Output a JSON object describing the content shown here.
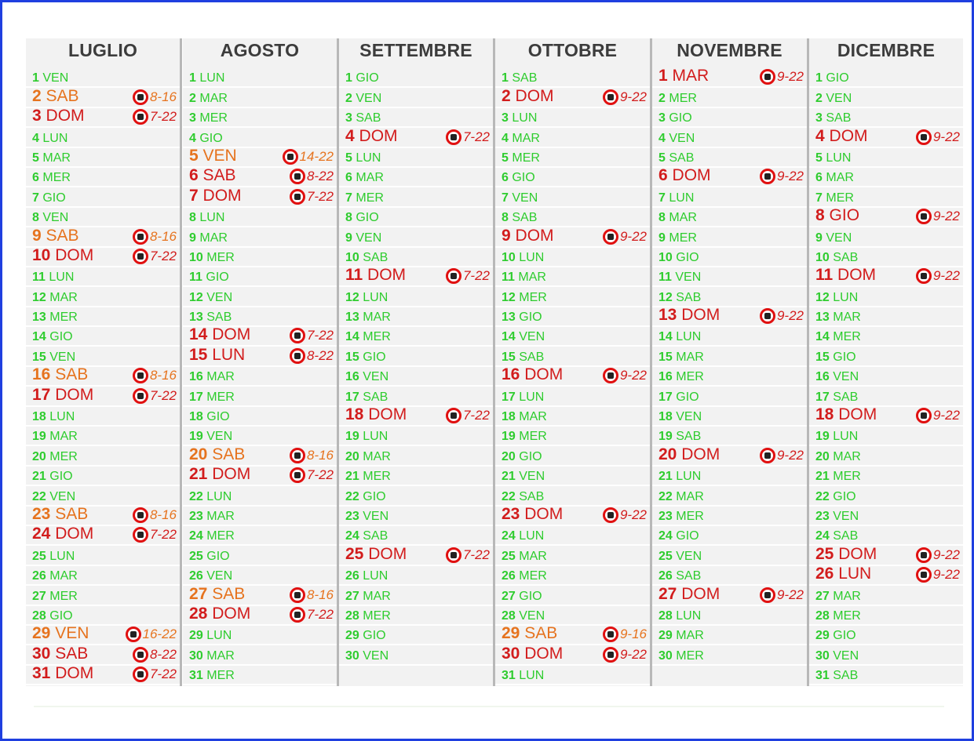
{
  "months": [
    {
      "name": "LUGLIO",
      "days": [
        {
          "n": "1",
          "d": "VEN",
          "t": "g"
        },
        {
          "n": "2",
          "d": "SAB",
          "t": "o",
          "h": "8-16"
        },
        {
          "n": "3",
          "d": "DOM",
          "t": "r",
          "h": "7-22"
        },
        {
          "n": "4",
          "d": "LUN",
          "t": "g"
        },
        {
          "n": "5",
          "d": "MAR",
          "t": "g"
        },
        {
          "n": "6",
          "d": "MER",
          "t": "g"
        },
        {
          "n": "7",
          "d": "GIO",
          "t": "g"
        },
        {
          "n": "8",
          "d": "VEN",
          "t": "g"
        },
        {
          "n": "9",
          "d": "SAB",
          "t": "o",
          "h": "8-16"
        },
        {
          "n": "10",
          "d": "DOM",
          "t": "r",
          "h": "7-22"
        },
        {
          "n": "11",
          "d": "LUN",
          "t": "g"
        },
        {
          "n": "12",
          "d": "MAR",
          "t": "g"
        },
        {
          "n": "13",
          "d": "MER",
          "t": "g"
        },
        {
          "n": "14",
          "d": "GIO",
          "t": "g"
        },
        {
          "n": "15",
          "d": "VEN",
          "t": "g"
        },
        {
          "n": "16",
          "d": "SAB",
          "t": "o",
          "h": "8-16"
        },
        {
          "n": "17",
          "d": "DOM",
          "t": "r",
          "h": "7-22"
        },
        {
          "n": "18",
          "d": "LUN",
          "t": "g"
        },
        {
          "n": "19",
          "d": "MAR",
          "t": "g"
        },
        {
          "n": "20",
          "d": "MER",
          "t": "g"
        },
        {
          "n": "21",
          "d": "GIO",
          "t": "g"
        },
        {
          "n": "22",
          "d": "VEN",
          "t": "g"
        },
        {
          "n": "23",
          "d": "SAB",
          "t": "o",
          "h": "8-16"
        },
        {
          "n": "24",
          "d": "DOM",
          "t": "r",
          "h": "7-22"
        },
        {
          "n": "25",
          "d": "LUN",
          "t": "g"
        },
        {
          "n": "26",
          "d": "MAR",
          "t": "g"
        },
        {
          "n": "27",
          "d": "MER",
          "t": "g"
        },
        {
          "n": "28",
          "d": "GIO",
          "t": "g"
        },
        {
          "n": "29",
          "d": "VEN",
          "t": "o",
          "h": "16-22"
        },
        {
          "n": "30",
          "d": "SAB",
          "t": "r",
          "h": "8-22"
        },
        {
          "n": "31",
          "d": "DOM",
          "t": "r",
          "h": "7-22"
        }
      ]
    },
    {
      "name": "AGOSTO",
      "days": [
        {
          "n": "1",
          "d": "LUN",
          "t": "g"
        },
        {
          "n": "2",
          "d": "MAR",
          "t": "g"
        },
        {
          "n": "3",
          "d": "MER",
          "t": "g"
        },
        {
          "n": "4",
          "d": "GIO",
          "t": "g"
        },
        {
          "n": "5",
          "d": "VEN",
          "t": "o",
          "h": "14-22"
        },
        {
          "n": "6",
          "d": "SAB",
          "t": "r",
          "h": "8-22"
        },
        {
          "n": "7",
          "d": "DOM",
          "t": "r",
          "h": "7-22"
        },
        {
          "n": "8",
          "d": "LUN",
          "t": "g"
        },
        {
          "n": "9",
          "d": "MAR",
          "t": "g"
        },
        {
          "n": "10",
          "d": "MER",
          "t": "g"
        },
        {
          "n": "11",
          "d": "GIO",
          "t": "g"
        },
        {
          "n": "12",
          "d": "VEN",
          "t": "g"
        },
        {
          "n": "13",
          "d": "SAB",
          "t": "g"
        },
        {
          "n": "14",
          "d": "DOM",
          "t": "r",
          "h": "7-22"
        },
        {
          "n": "15",
          "d": "LUN",
          "t": "r",
          "h": "8-22"
        },
        {
          "n": "16",
          "d": "MAR",
          "t": "g"
        },
        {
          "n": "17",
          "d": "MER",
          "t": "g"
        },
        {
          "n": "18",
          "d": "GIO",
          "t": "g"
        },
        {
          "n": "19",
          "d": "VEN",
          "t": "g"
        },
        {
          "n": "20",
          "d": "SAB",
          "t": "o",
          "h": "8-16"
        },
        {
          "n": "21",
          "d": "DOM",
          "t": "r",
          "h": "7-22"
        },
        {
          "n": "22",
          "d": "LUN",
          "t": "g"
        },
        {
          "n": "23",
          "d": "MAR",
          "t": "g"
        },
        {
          "n": "24",
          "d": "MER",
          "t": "g"
        },
        {
          "n": "25",
          "d": "GIO",
          "t": "g"
        },
        {
          "n": "26",
          "d": "VEN",
          "t": "g"
        },
        {
          "n": "27",
          "d": "SAB",
          "t": "o",
          "h": "8-16"
        },
        {
          "n": "28",
          "d": "DOM",
          "t": "r",
          "h": "7-22"
        },
        {
          "n": "29",
          "d": "LUN",
          "t": "g"
        },
        {
          "n": "30",
          "d": "MAR",
          "t": "g"
        },
        {
          "n": "31",
          "d": "MER",
          "t": "g"
        }
      ]
    },
    {
      "name": "SETTEMBRE",
      "days": [
        {
          "n": "1",
          "d": "GIO",
          "t": "g"
        },
        {
          "n": "2",
          "d": "VEN",
          "t": "g"
        },
        {
          "n": "3",
          "d": "SAB",
          "t": "g"
        },
        {
          "n": "4",
          "d": "DOM",
          "t": "r",
          "h": "7-22"
        },
        {
          "n": "5",
          "d": "LUN",
          "t": "g"
        },
        {
          "n": "6",
          "d": "MAR",
          "t": "g"
        },
        {
          "n": "7",
          "d": "MER",
          "t": "g"
        },
        {
          "n": "8",
          "d": "GIO",
          "t": "g"
        },
        {
          "n": "9",
          "d": "VEN",
          "t": "g"
        },
        {
          "n": "10",
          "d": "SAB",
          "t": "g"
        },
        {
          "n": "11",
          "d": "DOM",
          "t": "r",
          "h": "7-22"
        },
        {
          "n": "12",
          "d": "LUN",
          "t": "g"
        },
        {
          "n": "13",
          "d": "MAR",
          "t": "g"
        },
        {
          "n": "14",
          "d": "MER",
          "t": "g"
        },
        {
          "n": "15",
          "d": "GIO",
          "t": "g"
        },
        {
          "n": "16",
          "d": "VEN",
          "t": "g"
        },
        {
          "n": "17",
          "d": "SAB",
          "t": "g"
        },
        {
          "n": "18",
          "d": "DOM",
          "t": "r",
          "h": "7-22"
        },
        {
          "n": "19",
          "d": "LUN",
          "t": "g"
        },
        {
          "n": "20",
          "d": "MAR",
          "t": "g"
        },
        {
          "n": "21",
          "d": "MER",
          "t": "g"
        },
        {
          "n": "22",
          "d": "GIO",
          "t": "g"
        },
        {
          "n": "23",
          "d": "VEN",
          "t": "g"
        },
        {
          "n": "24",
          "d": "SAB",
          "t": "g"
        },
        {
          "n": "25",
          "d": "DOM",
          "t": "r",
          "h": "7-22"
        },
        {
          "n": "26",
          "d": "LUN",
          "t": "g"
        },
        {
          "n": "27",
          "d": "MAR",
          "t": "g"
        },
        {
          "n": "28",
          "d": "MER",
          "t": "g"
        },
        {
          "n": "29",
          "d": "GIO",
          "t": "g"
        },
        {
          "n": "30",
          "d": "VEN",
          "t": "g"
        }
      ]
    },
    {
      "name": "OTTOBRE",
      "days": [
        {
          "n": "1",
          "d": "SAB",
          "t": "g"
        },
        {
          "n": "2",
          "d": "DOM",
          "t": "r",
          "h": "9-22"
        },
        {
          "n": "3",
          "d": "LUN",
          "t": "g"
        },
        {
          "n": "4",
          "d": "MAR",
          "t": "g"
        },
        {
          "n": "5",
          "d": "MER",
          "t": "g"
        },
        {
          "n": "6",
          "d": "GIO",
          "t": "g"
        },
        {
          "n": "7",
          "d": "VEN",
          "t": "g"
        },
        {
          "n": "8",
          "d": "SAB",
          "t": "g"
        },
        {
          "n": "9",
          "d": "DOM",
          "t": "r",
          "h": "9-22"
        },
        {
          "n": "10",
          "d": "LUN",
          "t": "g"
        },
        {
          "n": "11",
          "d": "MAR",
          "t": "g"
        },
        {
          "n": "12",
          "d": "MER",
          "t": "g"
        },
        {
          "n": "13",
          "d": "GIO",
          "t": "g"
        },
        {
          "n": "14",
          "d": "VEN",
          "t": "g"
        },
        {
          "n": "15",
          "d": "SAB",
          "t": "g"
        },
        {
          "n": "16",
          "d": "DOM",
          "t": "r",
          "h": "9-22"
        },
        {
          "n": "17",
          "d": "LUN",
          "t": "g"
        },
        {
          "n": "18",
          "d": "MAR",
          "t": "g"
        },
        {
          "n": "19",
          "d": "MER",
          "t": "g"
        },
        {
          "n": "20",
          "d": "GIO",
          "t": "g"
        },
        {
          "n": "21",
          "d": "VEN",
          "t": "g"
        },
        {
          "n": "22",
          "d": "SAB",
          "t": "g"
        },
        {
          "n": "23",
          "d": "DOM",
          "t": "r",
          "h": "9-22"
        },
        {
          "n": "24",
          "d": "LUN",
          "t": "g"
        },
        {
          "n": "25",
          "d": "MAR",
          "t": "g"
        },
        {
          "n": "26",
          "d": "MER",
          "t": "g"
        },
        {
          "n": "27",
          "d": "GIO",
          "t": "g"
        },
        {
          "n": "28",
          "d": "VEN",
          "t": "g"
        },
        {
          "n": "29",
          "d": "SAB",
          "t": "o",
          "h": "9-16"
        },
        {
          "n": "30",
          "d": "DOM",
          "t": "r",
          "h": "9-22"
        },
        {
          "n": "31",
          "d": "LUN",
          "t": "g"
        }
      ]
    },
    {
      "name": "NOVEMBRE",
      "days": [
        {
          "n": "1",
          "d": "MAR",
          "t": "r",
          "h": "9-22"
        },
        {
          "n": "2",
          "d": "MER",
          "t": "g"
        },
        {
          "n": "3",
          "d": "GIO",
          "t": "g"
        },
        {
          "n": "4",
          "d": "VEN",
          "t": "g"
        },
        {
          "n": "5",
          "d": "SAB",
          "t": "g"
        },
        {
          "n": "6",
          "d": "DOM",
          "t": "r",
          "h": "9-22"
        },
        {
          "n": "7",
          "d": "LUN",
          "t": "g"
        },
        {
          "n": "8",
          "d": "MAR",
          "t": "g"
        },
        {
          "n": "9",
          "d": "MER",
          "t": "g"
        },
        {
          "n": "10",
          "d": "GIO",
          "t": "g"
        },
        {
          "n": "11",
          "d": "VEN",
          "t": "g"
        },
        {
          "n": "12",
          "d": "SAB",
          "t": "g"
        },
        {
          "n": "13",
          "d": "DOM",
          "t": "r",
          "h": "9-22"
        },
        {
          "n": "14",
          "d": "LUN",
          "t": "g"
        },
        {
          "n": "15",
          "d": "MAR",
          "t": "g"
        },
        {
          "n": "16",
          "d": "MER",
          "t": "g"
        },
        {
          "n": "17",
          "d": "GIO",
          "t": "g"
        },
        {
          "n": "18",
          "d": "VEN",
          "t": "g"
        },
        {
          "n": "19",
          "d": "SAB",
          "t": "g"
        },
        {
          "n": "20",
          "d": "DOM",
          "t": "r",
          "h": "9-22"
        },
        {
          "n": "21",
          "d": "LUN",
          "t": "g"
        },
        {
          "n": "22",
          "d": "MAR",
          "t": "g"
        },
        {
          "n": "23",
          "d": "MER",
          "t": "g"
        },
        {
          "n": "24",
          "d": "GIO",
          "t": "g"
        },
        {
          "n": "25",
          "d": "VEN",
          "t": "g"
        },
        {
          "n": "26",
          "d": "SAB",
          "t": "g"
        },
        {
          "n": "27",
          "d": "DOM",
          "t": "r",
          "h": "9-22"
        },
        {
          "n": "28",
          "d": "LUN",
          "t": "g"
        },
        {
          "n": "29",
          "d": "MAR",
          "t": "g"
        },
        {
          "n": "30",
          "d": "MER",
          "t": "g"
        }
      ]
    },
    {
      "name": "DICEMBRE",
      "days": [
        {
          "n": "1",
          "d": "GIO",
          "t": "g"
        },
        {
          "n": "2",
          "d": "VEN",
          "t": "g"
        },
        {
          "n": "3",
          "d": "SAB",
          "t": "g"
        },
        {
          "n": "4",
          "d": "DOM",
          "t": "r",
          "h": "9-22"
        },
        {
          "n": "5",
          "d": "LUN",
          "t": "g"
        },
        {
          "n": "6",
          "d": "MAR",
          "t": "g"
        },
        {
          "n": "7",
          "d": "MER",
          "t": "g"
        },
        {
          "n": "8",
          "d": "GIO",
          "t": "r",
          "h": "9-22"
        },
        {
          "n": "9",
          "d": "VEN",
          "t": "g"
        },
        {
          "n": "10",
          "d": "SAB",
          "t": "g"
        },
        {
          "n": "11",
          "d": "DOM",
          "t": "r",
          "h": "9-22"
        },
        {
          "n": "12",
          "d": "LUN",
          "t": "g"
        },
        {
          "n": "13",
          "d": "MAR",
          "t": "g"
        },
        {
          "n": "14",
          "d": "MER",
          "t": "g"
        },
        {
          "n": "15",
          "d": "GIO",
          "t": "g"
        },
        {
          "n": "16",
          "d": "VEN",
          "t": "g"
        },
        {
          "n": "17",
          "d": "SAB",
          "t": "g"
        },
        {
          "n": "18",
          "d": "DOM",
          "t": "r",
          "h": "9-22"
        },
        {
          "n": "19",
          "d": "LUN",
          "t": "g"
        },
        {
          "n": "20",
          "d": "MAR",
          "t": "g"
        },
        {
          "n": "21",
          "d": "MER",
          "t": "g"
        },
        {
          "n": "22",
          "d": "GIO",
          "t": "g"
        },
        {
          "n": "23",
          "d": "VEN",
          "t": "g"
        },
        {
          "n": "24",
          "d": "SAB",
          "t": "g"
        },
        {
          "n": "25",
          "d": "DOM",
          "t": "r",
          "h": "9-22"
        },
        {
          "n": "26",
          "d": "LUN",
          "t": "r",
          "h": "9-22"
        },
        {
          "n": "27",
          "d": "MAR",
          "t": "g"
        },
        {
          "n": "28",
          "d": "MER",
          "t": "g"
        },
        {
          "n": "29",
          "d": "GIO",
          "t": "g"
        },
        {
          "n": "30",
          "d": "VEN",
          "t": "g"
        },
        {
          "n": "31",
          "d": "SAB",
          "t": "g"
        }
      ]
    }
  ],
  "icons": {
    "badge_icon": "no-parking-restriction-icon"
  },
  "colors": {
    "weekday": "#2ecc2e",
    "holiday": "#d21c1c",
    "saturday": "#e6731e",
    "frame": "#1f3fe0"
  }
}
